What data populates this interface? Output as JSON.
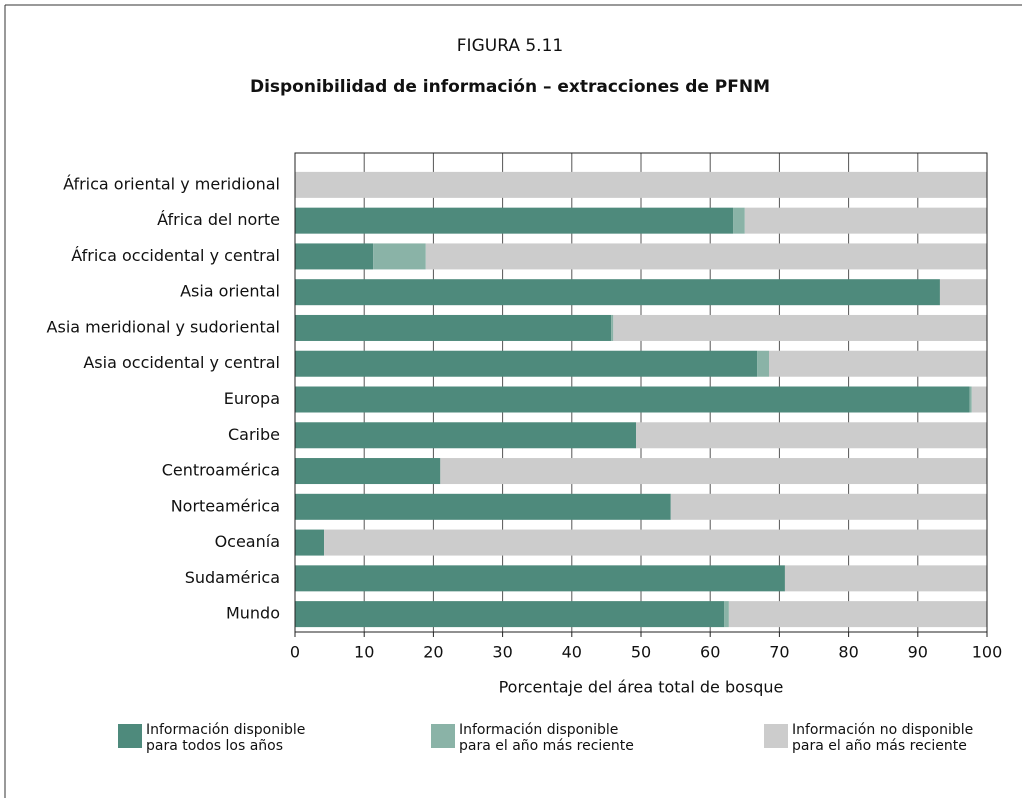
{
  "chart_data": {
    "type": "stacked_barh",
    "title": "FIGURA 5.11",
    "subtitle": "Disponibilidad de información – extracciones de PFNM",
    "x_label": "Porcentaje del área total de bosque",
    "categories": [
      "África oriental y meridional",
      "África del norte",
      "África occidental y central",
      "Asia oriental",
      "Asia meridional y sudoriental",
      "Asia occidental y central",
      "Europa",
      "Caribe",
      "Centroamérica",
      "Norteamérica",
      "Oceanía",
      "Sudamérica",
      "Mundo"
    ],
    "series": [
      {
        "name": "Información disponible para todos los años",
        "color": "#4e8a7c",
        "values": [
          0,
          63.3,
          11.3,
          93.2,
          45.7,
          66.8,
          97.5,
          49.3,
          21,
          54.3,
          4.2,
          70.8,
          62
        ]
      },
      {
        "name": "Información disponible para el año más reciente",
        "color": "#8ab3a7",
        "values": [
          0,
          1.7,
          7.6,
          0,
          0.3,
          1.7,
          0.3,
          0,
          0,
          0,
          0,
          0,
          0.7
        ]
      },
      {
        "name": "Información no disponible para el año más reciente",
        "color": "#cccccc",
        "values": [
          100,
          35,
          81.1,
          6.8,
          54,
          31.5,
          2.2,
          50.7,
          79,
          45.7,
          95.8,
          29.2,
          37.3
        ]
      }
    ],
    "xlim": [
      0,
      100
    ],
    "xticks": [
      0,
      10,
      20,
      30,
      40,
      50,
      60,
      70,
      80,
      90,
      100
    ],
    "grid": true
  }
}
